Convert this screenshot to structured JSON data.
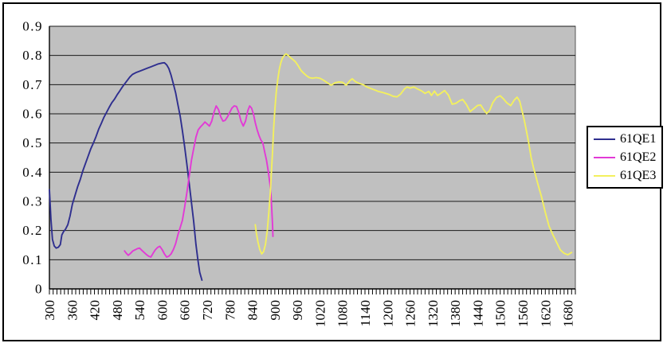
{
  "window": {
    "background": "#ffffff",
    "border_color": "#000000"
  },
  "legend": {
    "position": "right",
    "items": [
      {
        "label": "61QE1"
      },
      {
        "label": "61QE2"
      },
      {
        "label": "61QE3"
      }
    ]
  },
  "chart_data": {
    "type": "line",
    "title": "",
    "xlabel": "",
    "ylabel": "",
    "xlim": [
      300,
      1700
    ],
    "ylim": [
      0,
      0.9
    ],
    "grid": "horizontal",
    "plot_background": "#c0c0c0",
    "gridline_color": "#1a1a1a",
    "axis_color": "#000000",
    "label_color": "#000000",
    "x_tick_step": 60,
    "x_minor_tick_step": 10,
    "y_tick_step": 0.1,
    "x_tick_labels": [
      "300",
      "360",
      "420",
      "480",
      "540",
      "600",
      "660",
      "720",
      "780",
      "840",
      "900",
      "960",
      "1020",
      "1080",
      "1140",
      "1200",
      "1260",
      "1320",
      "1380",
      "1440",
      "1500",
      "1560",
      "1620",
      "1680"
    ],
    "y_tick_labels": [
      "0",
      "0.1",
      "0.2",
      "0.3",
      "0.4",
      "0.5",
      "0.6",
      "0.7",
      "0.8",
      "0.9"
    ],
    "legend_position": "right",
    "series": [
      {
        "name": "61QE1",
        "color": "#2f2f8f",
        "points": [
          [
            300,
            0.34
          ],
          [
            304,
            0.24
          ],
          [
            308,
            0.17
          ],
          [
            313,
            0.147
          ],
          [
            318,
            0.14
          ],
          [
            324,
            0.143
          ],
          [
            329,
            0.152
          ],
          [
            333,
            0.185
          ],
          [
            338,
            0.197
          ],
          [
            343,
            0.205
          ],
          [
            349,
            0.22
          ],
          [
            355,
            0.25
          ],
          [
            361,
            0.29
          ],
          [
            368,
            0.32
          ],
          [
            375,
            0.35
          ],
          [
            382,
            0.375
          ],
          [
            389,
            0.405
          ],
          [
            396,
            0.43
          ],
          [
            403,
            0.455
          ],
          [
            410,
            0.48
          ],
          [
            417,
            0.5
          ],
          [
            424,
            0.522
          ],
          [
            431,
            0.547
          ],
          [
            438,
            0.567
          ],
          [
            445,
            0.588
          ],
          [
            452,
            0.605
          ],
          [
            459,
            0.622
          ],
          [
            466,
            0.638
          ],
          [
            473,
            0.65
          ],
          [
            480,
            0.665
          ],
          [
            487,
            0.678
          ],
          [
            494,
            0.692
          ],
          [
            500,
            0.702
          ],
          [
            507,
            0.714
          ],
          [
            514,
            0.726
          ],
          [
            521,
            0.735
          ],
          [
            530,
            0.741
          ],
          [
            540,
            0.746
          ],
          [
            550,
            0.751
          ],
          [
            560,
            0.756
          ],
          [
            570,
            0.761
          ],
          [
            580,
            0.766
          ],
          [
            590,
            0.771
          ],
          [
            600,
            0.774
          ],
          [
            606,
            0.775
          ],
          [
            612,
            0.768
          ],
          [
            618,
            0.755
          ],
          [
            624,
            0.732
          ],
          [
            630,
            0.702
          ],
          [
            636,
            0.672
          ],
          [
            642,
            0.632
          ],
          [
            648,
            0.592
          ],
          [
            654,
            0.542
          ],
          [
            660,
            0.487
          ],
          [
            666,
            0.427
          ],
          [
            672,
            0.362
          ],
          [
            678,
            0.297
          ],
          [
            684,
            0.232
          ],
          [
            690,
            0.152
          ],
          [
            695,
            0.102
          ],
          [
            700,
            0.057
          ],
          [
            706,
            0.03
          ]
        ]
      },
      {
        "name": "61QE2",
        "color": "#e23ad6",
        "points": [
          [
            500,
            0.13
          ],
          [
            505,
            0.122
          ],
          [
            510,
            0.115
          ],
          [
            516,
            0.122
          ],
          [
            522,
            0.13
          ],
          [
            528,
            0.134
          ],
          [
            534,
            0.138
          ],
          [
            540,
            0.14
          ],
          [
            546,
            0.132
          ],
          [
            552,
            0.125
          ],
          [
            558,
            0.118
          ],
          [
            564,
            0.112
          ],
          [
            570,
            0.109
          ],
          [
            576,
            0.122
          ],
          [
            582,
            0.134
          ],
          [
            588,
            0.142
          ],
          [
            594,
            0.146
          ],
          [
            600,
            0.135
          ],
          [
            606,
            0.12
          ],
          [
            612,
            0.109
          ],
          [
            618,
            0.112
          ],
          [
            624,
            0.12
          ],
          [
            630,
            0.135
          ],
          [
            636,
            0.155
          ],
          [
            642,
            0.185
          ],
          [
            648,
            0.21
          ],
          [
            654,
            0.235
          ],
          [
            660,
            0.28
          ],
          [
            666,
            0.33
          ],
          [
            672,
            0.385
          ],
          [
            678,
            0.44
          ],
          [
            684,
            0.48
          ],
          [
            690,
            0.52
          ],
          [
            696,
            0.545
          ],
          [
            702,
            0.555
          ],
          [
            708,
            0.563
          ],
          [
            714,
            0.572
          ],
          [
            720,
            0.565
          ],
          [
            726,
            0.558
          ],
          [
            732,
            0.575
          ],
          [
            738,
            0.605
          ],
          [
            744,
            0.627
          ],
          [
            750,
            0.615
          ],
          [
            756,
            0.59
          ],
          [
            762,
            0.575
          ],
          [
            768,
            0.578
          ],
          [
            774,
            0.59
          ],
          [
            780,
            0.605
          ],
          [
            786,
            0.62
          ],
          [
            792,
            0.627
          ],
          [
            798,
            0.625
          ],
          [
            804,
            0.605
          ],
          [
            810,
            0.575
          ],
          [
            816,
            0.558
          ],
          [
            822,
            0.575
          ],
          [
            828,
            0.61
          ],
          [
            833,
            0.627
          ],
          [
            838,
            0.62
          ],
          [
            843,
            0.6
          ],
          [
            848,
            0.57
          ],
          [
            853,
            0.545
          ],
          [
            858,
            0.525
          ],
          [
            863,
            0.51
          ],
          [
            868,
            0.5
          ],
          [
            873,
            0.47
          ],
          [
            878,
            0.44
          ],
          [
            883,
            0.4
          ],
          [
            887,
            0.36
          ],
          [
            890,
            0.32
          ],
          [
            892,
            0.27
          ],
          [
            894,
            0.22
          ],
          [
            895,
            0.18
          ]
        ]
      },
      {
        "name": "61QE3",
        "color": "#f3f05e",
        "points": [
          [
            848,
            0.22
          ],
          [
            851,
            0.19
          ],
          [
            855,
            0.162
          ],
          [
            860,
            0.135
          ],
          [
            865,
            0.12
          ],
          [
            870,
            0.127
          ],
          [
            875,
            0.152
          ],
          [
            880,
            0.2
          ],
          [
            884,
            0.26
          ],
          [
            888,
            0.33
          ],
          [
            891,
            0.4
          ],
          [
            894,
            0.47
          ],
          [
            897,
            0.55
          ],
          [
            900,
            0.615
          ],
          [
            904,
            0.675
          ],
          [
            908,
            0.718
          ],
          [
            912,
            0.752
          ],
          [
            916,
            0.775
          ],
          [
            920,
            0.79
          ],
          [
            925,
            0.8
          ],
          [
            930,
            0.805
          ],
          [
            936,
            0.8
          ],
          [
            942,
            0.792
          ],
          [
            948,
            0.786
          ],
          [
            955,
            0.778
          ],
          [
            962,
            0.765
          ],
          [
            970,
            0.748
          ],
          [
            978,
            0.738
          ],
          [
            985,
            0.73
          ],
          [
            992,
            0.724
          ],
          [
            1000,
            0.722
          ],
          [
            1010,
            0.724
          ],
          [
            1020,
            0.722
          ],
          [
            1030,
            0.715
          ],
          [
            1040,
            0.706
          ],
          [
            1050,
            0.698
          ],
          [
            1060,
            0.706
          ],
          [
            1070,
            0.709
          ],
          [
            1080,
            0.708
          ],
          [
            1090,
            0.698
          ],
          [
            1100,
            0.714
          ],
          [
            1106,
            0.72
          ],
          [
            1115,
            0.71
          ],
          [
            1125,
            0.704
          ],
          [
            1135,
            0.7
          ],
          [
            1145,
            0.692
          ],
          [
            1155,
            0.687
          ],
          [
            1165,
            0.682
          ],
          [
            1175,
            0.677
          ],
          [
            1185,
            0.674
          ],
          [
            1195,
            0.67
          ],
          [
            1205,
            0.666
          ],
          [
            1215,
            0.66
          ],
          [
            1225,
            0.658
          ],
          [
            1235,
            0.668
          ],
          [
            1245,
            0.685
          ],
          [
            1252,
            0.692
          ],
          [
            1260,
            0.688
          ],
          [
            1270,
            0.692
          ],
          [
            1280,
            0.685
          ],
          [
            1290,
            0.679
          ],
          [
            1300,
            0.67
          ],
          [
            1310,
            0.677
          ],
          [
            1317,
            0.663
          ],
          [
            1325,
            0.678
          ],
          [
            1333,
            0.663
          ],
          [
            1342,
            0.67
          ],
          [
            1352,
            0.68
          ],
          [
            1362,
            0.664
          ],
          [
            1372,
            0.633
          ],
          [
            1382,
            0.636
          ],
          [
            1392,
            0.645
          ],
          [
            1400,
            0.649
          ],
          [
            1410,
            0.632
          ],
          [
            1420,
            0.608
          ],
          [
            1430,
            0.618
          ],
          [
            1440,
            0.629
          ],
          [
            1448,
            0.63
          ],
          [
            1456,
            0.614
          ],
          [
            1464,
            0.601
          ],
          [
            1472,
            0.612
          ],
          [
            1480,
            0.638
          ],
          [
            1490,
            0.656
          ],
          [
            1500,
            0.662
          ],
          [
            1508,
            0.652
          ],
          [
            1518,
            0.637
          ],
          [
            1528,
            0.628
          ],
          [
            1538,
            0.648
          ],
          [
            1545,
            0.657
          ],
          [
            1552,
            0.643
          ],
          [
            1558,
            0.61
          ],
          [
            1564,
            0.578
          ],
          [
            1570,
            0.54
          ],
          [
            1576,
            0.5
          ],
          [
            1582,
            0.452
          ],
          [
            1588,
            0.418
          ],
          [
            1594,
            0.39
          ],
          [
            1600,
            0.36
          ],
          [
            1610,
            0.315
          ],
          [
            1620,
            0.262
          ],
          [
            1630,
            0.215
          ],
          [
            1640,
            0.186
          ],
          [
            1650,
            0.16
          ],
          [
            1660,
            0.134
          ],
          [
            1670,
            0.122
          ],
          [
            1680,
            0.117
          ],
          [
            1690,
            0.125
          ]
        ]
      }
    ]
  }
}
